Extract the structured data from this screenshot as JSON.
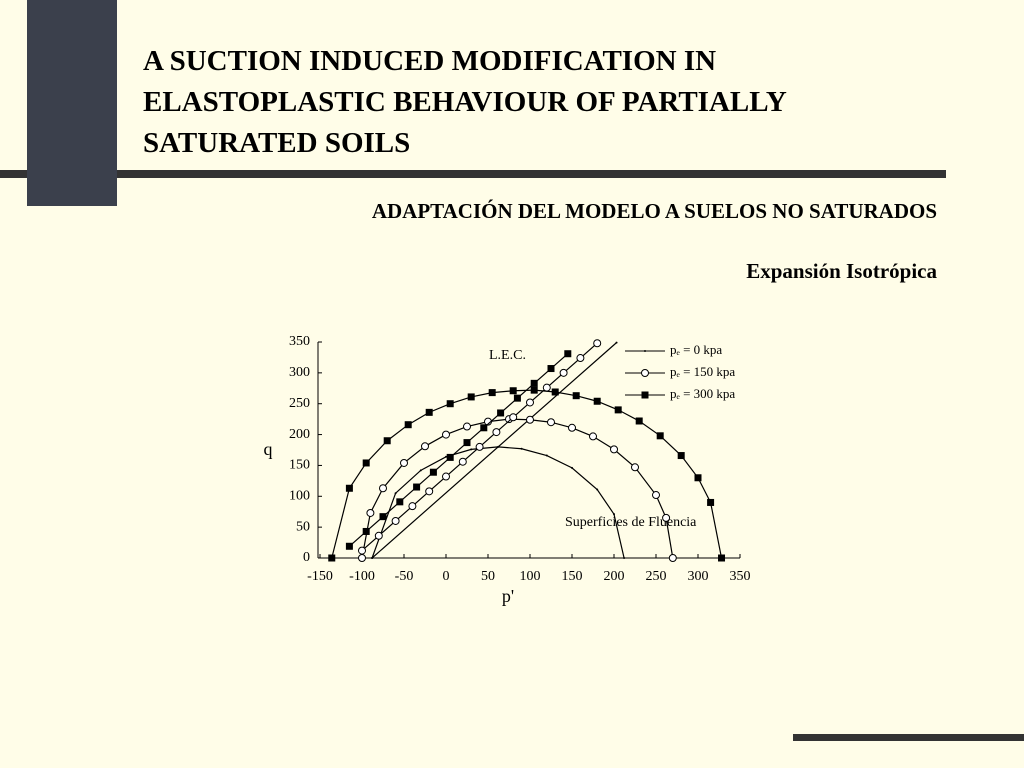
{
  "slide": {
    "title_lines": [
      "A SUCTION INDUCED MODIFICATION IN",
      "ELASTOPLASTIC BEHAVIOUR OF PARTIALLY",
      "SATURATED SOILS"
    ],
    "subtitle": "ADAPTACIÓN DEL MODELO A SUELOS NO SATURADOS",
    "heading": "Expansión Isotrópica"
  },
  "chart_data": {
    "type": "line",
    "x_label": "p'",
    "y_label": "q",
    "annotations": [
      "L.E.C.",
      "Superficies de Fluencia"
    ],
    "xlim": [
      -150,
      350
    ],
    "xticks": [
      -150,
      -100,
      -50,
      0,
      50,
      100,
      150,
      200,
      250,
      300,
      350
    ],
    "ylim": [
      0,
      350
    ],
    "yticks": [
      0,
      50,
      100,
      150,
      200,
      250,
      300,
      350
    ],
    "legend": "top-right",
    "series": [
      {
        "name": "pₑ = 0 kpa",
        "color": "#000000",
        "marker": "dot",
        "surface_x": [
          -88,
          -60,
          -30,
          0,
          30,
          62,
          90,
          120,
          150,
          180,
          200,
          212
        ],
        "surface_y": [
          0,
          105,
          142,
          164,
          176,
          180,
          177,
          166,
          146,
          111,
          71,
          0
        ],
        "lec_x": [
          -88,
          203
        ],
        "lec_y": [
          0,
          349
        ]
      },
      {
        "name": "pₑ = 150 kpa",
        "color": "#000000",
        "marker": "circle",
        "surface_x": [
          -100,
          -90,
          -75,
          -50,
          -25,
          0,
          25,
          50,
          75,
          100,
          125,
          150,
          175,
          200,
          225,
          250,
          262,
          270
        ],
        "surface_y": [
          0,
          73,
          113,
          154,
          181,
          200,
          213,
          221,
          225,
          224,
          220,
          211,
          197,
          176,
          147,
          102,
          65,
          0
        ],
        "lec_x": [
          -100,
          -80,
          -60,
          -40,
          -20,
          0,
          20,
          40,
          60,
          80,
          100,
          120,
          140,
          160,
          180
        ],
        "lec_y": [
          12,
          36,
          60,
          84,
          108,
          132,
          156,
          180,
          204,
          228,
          252,
          276,
          300,
          324,
          348
        ]
      },
      {
        "name": "pₑ = 300 kpa",
        "color": "#000000",
        "marker": "square",
        "surface_x": [
          -136,
          -115,
          -95,
          -70,
          -45,
          -20,
          5,
          30,
          55,
          80,
          105,
          130,
          155,
          180,
          205,
          230,
          255,
          280,
          300,
          315,
          328
        ],
        "surface_y": [
          0,
          113,
          154,
          190,
          216,
          236,
          250,
          261,
          268,
          271,
          272,
          269,
          263,
          254,
          240,
          222,
          198,
          166,
          130,
          90,
          0
        ],
        "lec_x": [
          -115,
          -95,
          -75,
          -55,
          -35,
          -15,
          5,
          25,
          45,
          65,
          85,
          105,
          125,
          145
        ],
        "lec_y": [
          19,
          43,
          67,
          91,
          115,
          139,
          163,
          187,
          211,
          235,
          259,
          283,
          307,
          331
        ]
      }
    ]
  }
}
